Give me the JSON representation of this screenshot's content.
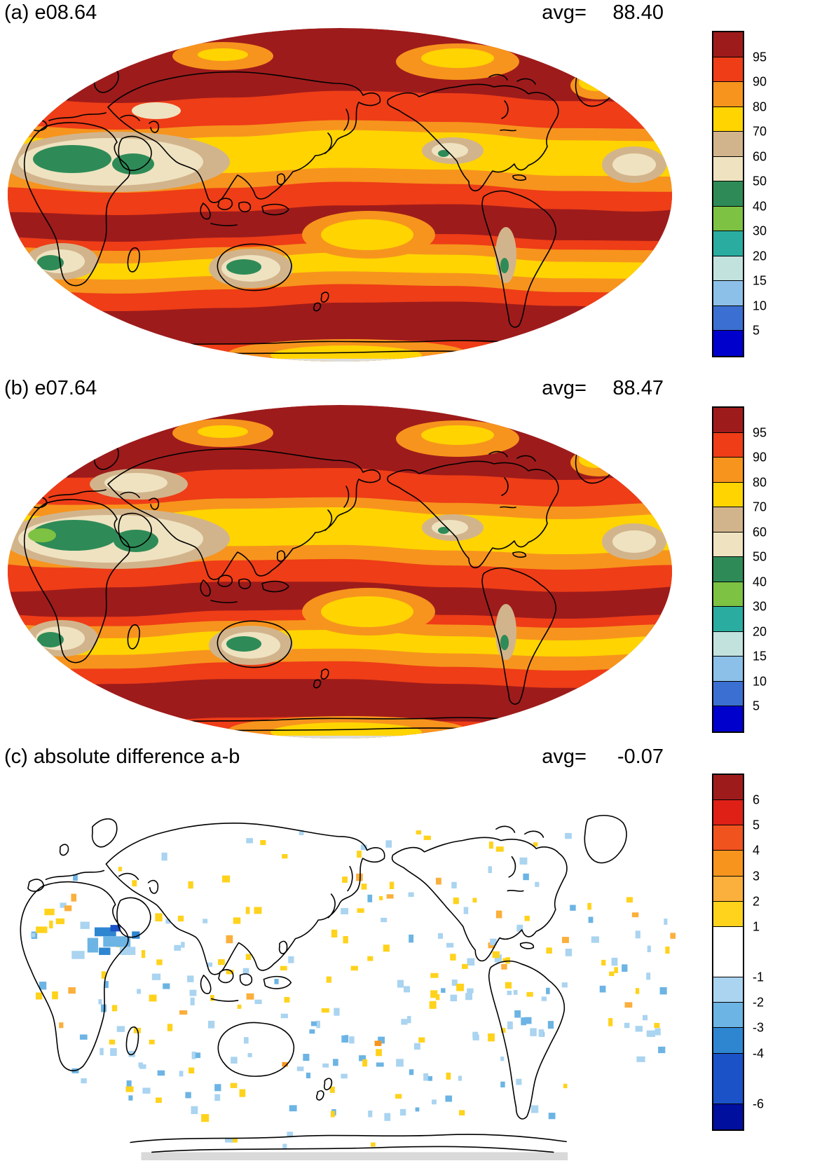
{
  "panels": [
    {
      "id": "a",
      "title": "(a) e08.64",
      "avg_label": "avg=",
      "avg_value": "88.40",
      "colorbar": {
        "ticks": [
          "95",
          "90",
          "80",
          "70",
          "60",
          "50",
          "40",
          "30",
          "20",
          "15",
          "10",
          "5"
        ],
        "colors": [
          "#9e1b1b",
          "#ee3d17",
          "#f7941d",
          "#ffd400",
          "#d2b48c",
          "#efe2c0",
          "#2e8b57",
          "#7dc242",
          "#2aada0",
          "#c2e2de",
          "#8cc0e8",
          "#3b6fd1",
          "#0000cd"
        ],
        "spans": [
          1,
          1,
          1,
          1,
          1,
          1,
          1,
          1,
          1,
          1,
          1,
          1,
          1
        ]
      }
    },
    {
      "id": "b",
      "title": "(b) e07.64",
      "avg_label": "avg=",
      "avg_value": "88.47",
      "colorbar": {
        "ticks": [
          "95",
          "90",
          "80",
          "70",
          "60",
          "50",
          "40",
          "30",
          "20",
          "15",
          "10",
          "5"
        ],
        "colors": [
          "#9e1b1b",
          "#ee3d17",
          "#f7941d",
          "#ffd400",
          "#d2b48c",
          "#efe2c0",
          "#2e8b57",
          "#7dc242",
          "#2aada0",
          "#c2e2de",
          "#8cc0e8",
          "#3b6fd1",
          "#0000cd"
        ],
        "spans": [
          1,
          1,
          1,
          1,
          1,
          1,
          1,
          1,
          1,
          1,
          1,
          1,
          1
        ]
      }
    },
    {
      "id": "c",
      "title": "(c) absolute difference a-b",
      "avg_label": "avg=",
      "avg_value": "-0.07",
      "colorbar": {
        "ticks": [
          "6",
          "5",
          "4",
          "3",
          "2",
          "1",
          "-1",
          "-2",
          "-3",
          "-4",
          "-6"
        ],
        "colors": [
          "#9e1b1b",
          "#df2017",
          "#f1531f",
          "#f7941d",
          "#fbaf3c",
          "#ffd21c",
          "#ffffff",
          "#aad4f0",
          "#6cb4e4",
          "#2e86d1",
          "#1c52c8",
          "#000f9e"
        ],
        "spans": [
          1,
          1,
          1,
          1,
          1,
          1,
          2,
          1,
          1,
          1,
          2,
          1
        ]
      }
    }
  ],
  "chart_data": [
    {
      "type": "heatmap",
      "subtype": "global-filled-contour-map-robinson",
      "title": "(a) e08.64",
      "avg": 88.4,
      "colorbar_levels": [
        5,
        10,
        15,
        20,
        30,
        40,
        50,
        60,
        70,
        80,
        90,
        95
      ],
      "colorbar_colors": [
        "#0000cd",
        "#3b6fd1",
        "#8cc0e8",
        "#c2e2de",
        "#2aada0",
        "#7dc242",
        "#2e8b57",
        "#efe2c0",
        "#d2b48c",
        "#ffd400",
        "#f7941d",
        "#ee3d17",
        "#9e1b1b"
      ],
      "legend_position": "right",
      "features": [
        {
          "region": "high-latitude oceans, storm tracks and deep tropics",
          "value": ">95"
        },
        {
          "region": "subtropical ocean bands (both hemispheres)",
          "value": "70-90"
        },
        {
          "region": "Sahara and Arabian Peninsula",
          "value": "40-60"
        },
        {
          "region": "interior Australia",
          "value": "40-60"
        },
        {
          "region": "southern Africa (Kalahari)",
          "value": "40-70"
        },
        {
          "region": "southwest North America",
          "value": "60-70"
        },
        {
          "region": "subtropical east Atlantic (right edge)",
          "value": "50-70"
        },
        {
          "region": "Antarctic coastal rim",
          "value": "80-95"
        }
      ]
    },
    {
      "type": "heatmap",
      "subtype": "global-filled-contour-map-robinson",
      "title": "(b) e07.64",
      "avg": 88.47,
      "colorbar_levels": [
        5,
        10,
        15,
        20,
        30,
        40,
        50,
        60,
        70,
        80,
        90,
        95
      ],
      "colorbar_colors": [
        "#0000cd",
        "#3b6fd1",
        "#8cc0e8",
        "#c2e2de",
        "#2aada0",
        "#7dc242",
        "#2e8b57",
        "#efe2c0",
        "#d2b48c",
        "#ffd400",
        "#f7941d",
        "#ee3d17",
        "#9e1b1b"
      ],
      "legend_position": "right",
      "features": [
        {
          "region": "high-latitude oceans, storm tracks and deep tropics",
          "value": ">95"
        },
        {
          "region": "subtropical ocean bands (both hemispheres)",
          "value": "70-90"
        },
        {
          "region": "Sahara and Arabian Peninsula",
          "value": "30-60"
        },
        {
          "region": "Europe / Mediterranean fringe",
          "value": "60-70"
        },
        {
          "region": "interior Australia",
          "value": "40-60"
        },
        {
          "region": "southern Africa (Kalahari)",
          "value": "40-70"
        },
        {
          "region": "Antarctic coastal rim",
          "value": "80-95"
        }
      ]
    },
    {
      "type": "heatmap",
      "subtype": "global-difference-map-robinson",
      "title": "(c) absolute difference a-b",
      "avg": -0.07,
      "colorbar_levels": [
        -6,
        -4,
        -3,
        -2,
        -1,
        1,
        2,
        3,
        4,
        5,
        6
      ],
      "colorbar_colors": [
        "#000f9e",
        "#1c52c8",
        "#2e86d1",
        "#6cb4e4",
        "#aad4f0",
        "#ffffff",
        "#ffd21c",
        "#fbaf3c",
        "#f7941d",
        "#f1531f",
        "#df2017",
        "#9e1b1b"
      ],
      "legend_position": "right",
      "features": [
        {
          "region": "most of the globe",
          "value": "-1 to 1 (white)"
        },
        {
          "region": "Arabian Peninsula / northeast Africa cluster",
          "value": "-2 to -4"
        },
        {
          "region": "scattered subtropical cells",
          "value": "+1 to +3"
        },
        {
          "region": "scattered tropical and southern-ocean cells",
          "value": "-1 to -2"
        },
        {
          "region": "Antarctica strip",
          "value": "no data (gray)"
        }
      ]
    }
  ]
}
